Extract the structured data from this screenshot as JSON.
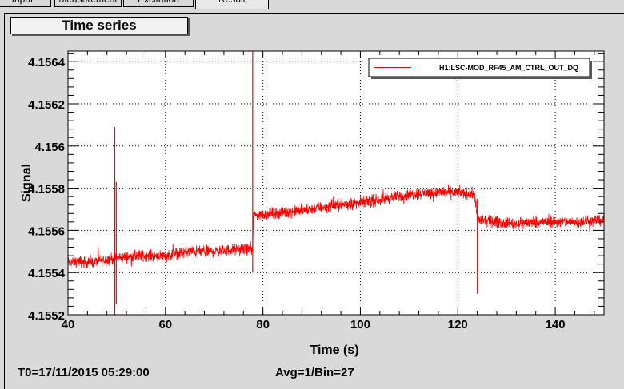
{
  "tabs": [
    {
      "label": "Input",
      "active": false
    },
    {
      "label": "Measurement",
      "active": false
    },
    {
      "label": "Excitation",
      "active": false
    },
    {
      "label": "Result",
      "active": true
    }
  ],
  "panel_title": "Time series",
  "footer": {
    "t0": "T0=17/11/2015 05:29:00",
    "avg": "Avg=1/Bin=27"
  },
  "chart_data": {
    "type": "line",
    "title": "",
    "xlabel": "Time (s)",
    "ylabel": "Signal",
    "xlim": [
      40,
      150
    ],
    "ylim": [
      4.1552,
      4.15645
    ],
    "xticks": [
      40,
      60,
      80,
      100,
      120,
      140
    ],
    "xtick_labels": [
      "40",
      "60",
      "80",
      "100",
      "120",
      "140"
    ],
    "yticks": [
      4.1552,
      4.1554,
      4.1556,
      4.1558,
      4.156,
      4.1562,
      4.1564
    ],
    "ytick_labels": [
      "4.1552",
      "4.1554",
      "4.1556",
      "4.1558",
      "4.156",
      "4.1562",
      "4.1564"
    ],
    "grid": true,
    "legend_position": "top-right",
    "line_color": "#ff0000",
    "series": [
      {
        "name": "H1:LSC-MOD_RF45_AM_CTRL_OUT_DQ",
        "x": [
          40,
          45,
          50,
          55,
          60,
          65,
          70,
          75,
          77.9,
          78.1,
          82,
          86,
          90,
          95,
          100,
          105,
          110,
          115,
          120,
          123.5,
          124,
          128,
          132,
          136,
          140,
          145,
          150
        ],
        "y": [
          4.15545,
          4.15545,
          4.15547,
          4.15548,
          4.15548,
          4.1555,
          4.1555,
          4.15551,
          4.15551,
          4.15567,
          4.15568,
          4.15569,
          4.1557,
          4.15572,
          4.15573,
          4.15575,
          4.15577,
          4.15578,
          4.15578,
          4.15577,
          4.15565,
          4.15564,
          4.15563,
          4.15564,
          4.15564,
          4.15564,
          4.15565
        ],
        "noise_amplitude": 4e-05,
        "spikes": [
          {
            "x": 49.6,
            "high": 4.15609,
            "low": 4.1552
          },
          {
            "x": 49.9,
            "high": 4.15583,
            "low": 4.15525
          },
          {
            "x": 77.9,
            "high": 4.15645,
            "low": 4.1554
          },
          {
            "x": 124,
            "high": 4.15575,
            "low": 4.1553
          }
        ]
      }
    ]
  }
}
